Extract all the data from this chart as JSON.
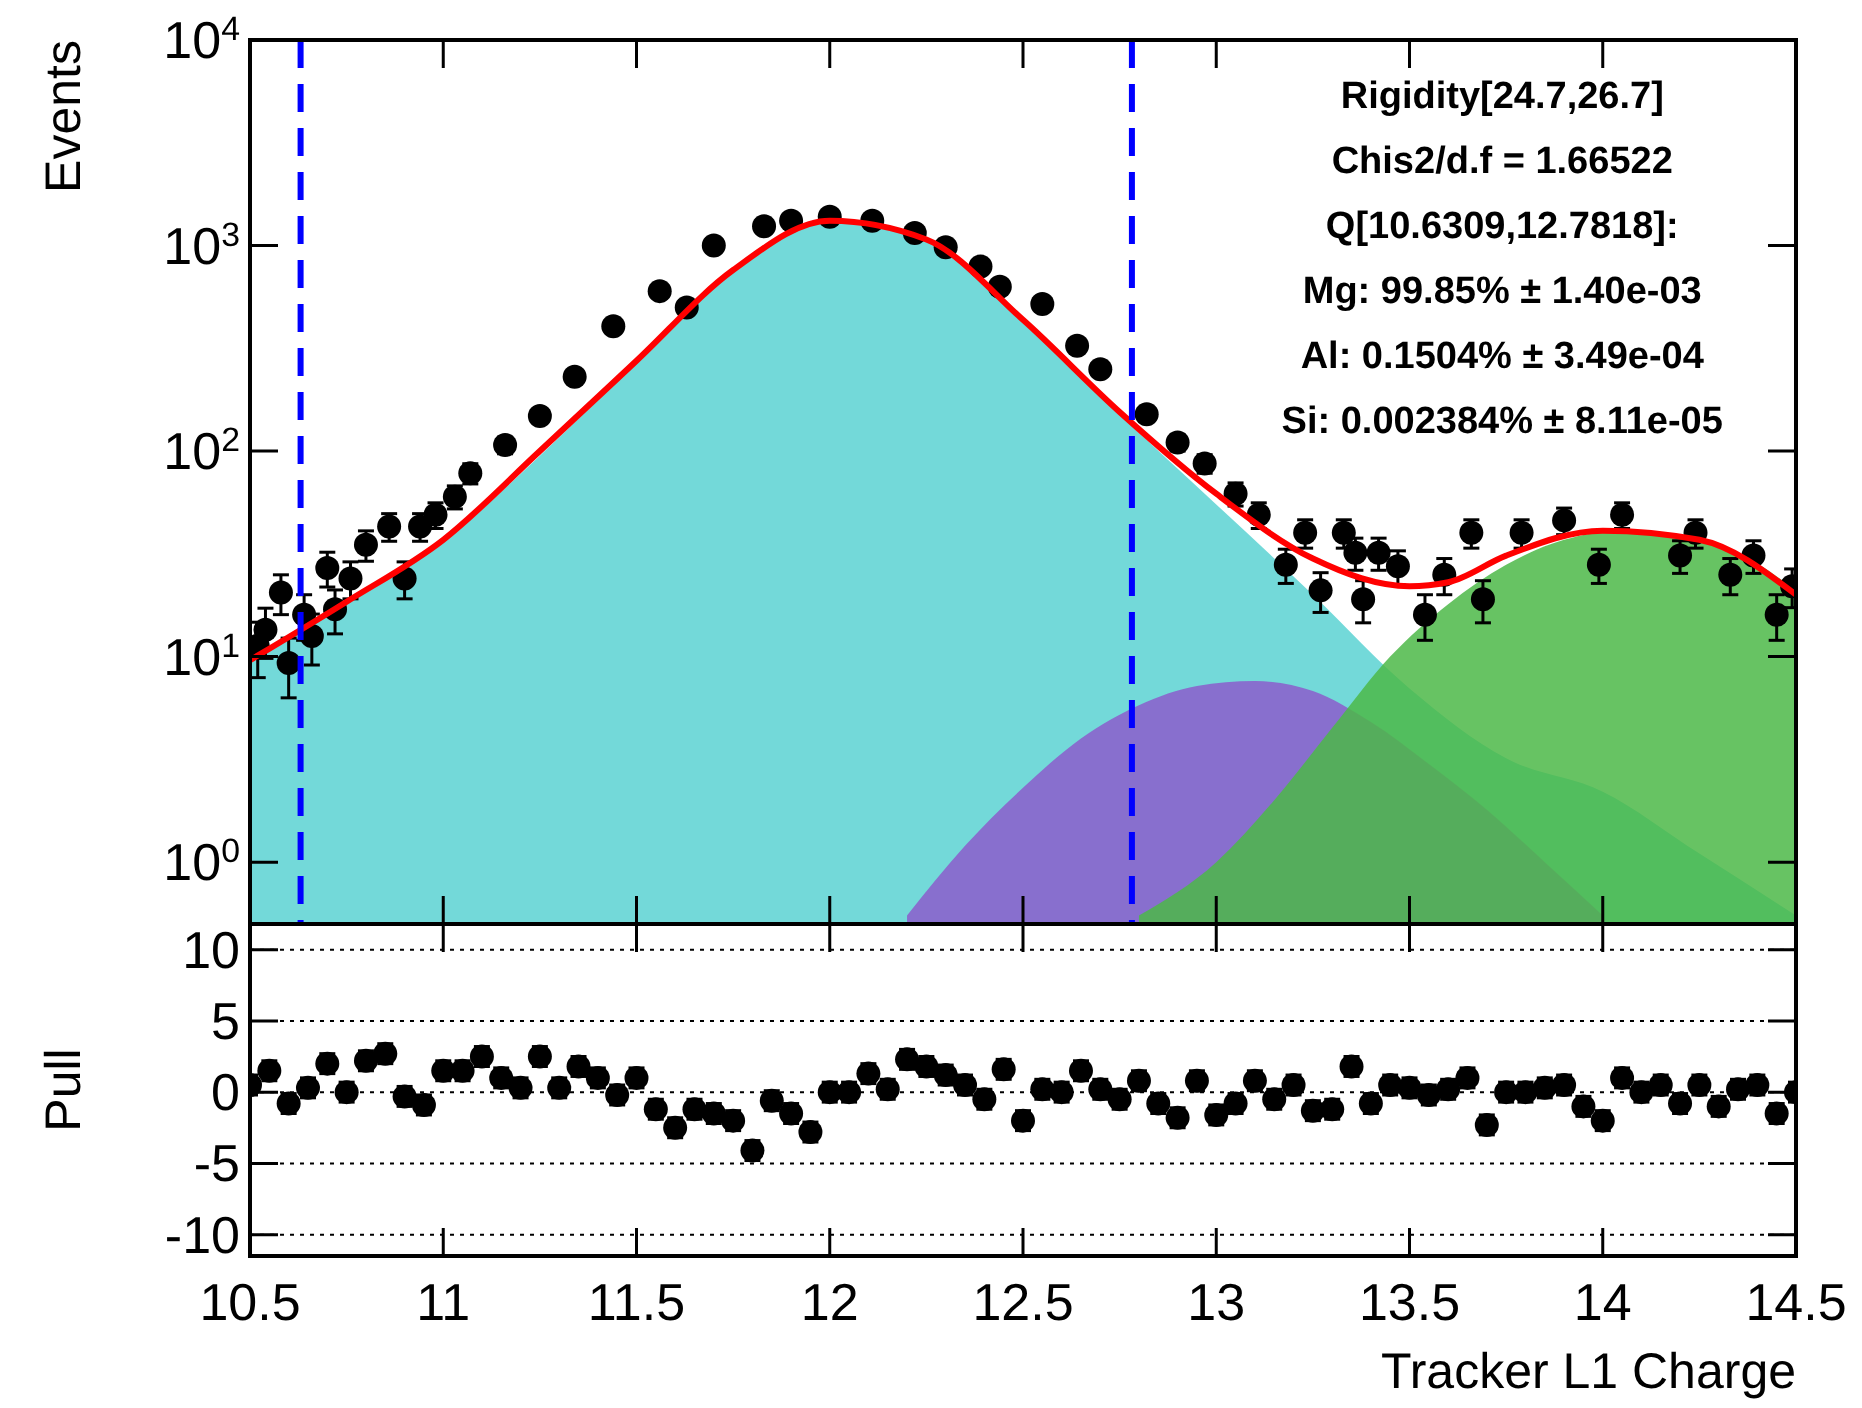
{
  "chart_data": [
    {
      "type": "area",
      "ylabel": "Events",
      "log": true,
      "xlim": [
        10.5,
        14.5
      ],
      "ylim": [
        0.5,
        10000
      ],
      "xticks": [
        10.5,
        11,
        11.5,
        12,
        12.5,
        13,
        13.5,
        14,
        14.5
      ],
      "yticks": [
        {
          "value": 1,
          "label": "10$^{0}$"
        },
        {
          "value": 10,
          "label": "10$^{1}$"
        },
        {
          "value": 100,
          "label": "10$^{2}$"
        },
        {
          "value": 1000,
          "label": "10$^{3}$"
        },
        {
          "value": 10000,
          "label": "10$^{4}$"
        }
      ],
      "tick_labels": "y",
      "series": [
        {
          "color": "#5ad2d2",
          "x": [
            10.5,
            10.75,
            11,
            11.25,
            11.5,
            11.75,
            12,
            12.25,
            12.5,
            12.75,
            13,
            13.25,
            13.5,
            13.75,
            14,
            14.25,
            14.5
          ],
          "values": [
            9.6,
            18,
            36,
            95,
            270,
            750,
            1300,
            1050,
            420,
            150,
            55,
            20,
            7,
            3.2,
            2.2,
            1.1,
            0.55
          ]
        },
        {
          "color": "#8c5ccb",
          "x": [
            12.2,
            12.35,
            12.5,
            12.65,
            12.8,
            12.95,
            13.1,
            13.25,
            13.4,
            13.55,
            13.7,
            13.85,
            14.0
          ],
          "values": [
            0.55,
            1.2,
            2.3,
            4.0,
            5.8,
            7.2,
            7.6,
            6.8,
            4.8,
            3.0,
            1.8,
            1.0,
            0.55
          ]
        },
        {
          "color": "#4cb848",
          "x": [
            12.8,
            13.0,
            13.15,
            13.3,
            13.45,
            13.6,
            13.75,
            13.9,
            14.05,
            14.2,
            14.35,
            14.5
          ],
          "values": [
            0.55,
            1.0,
            2.0,
            4.5,
            10,
            18,
            28,
            37,
            41,
            39,
            32,
            21
          ]
        },
        {
          "type": "scatter",
          "color": "#000000",
          "marker": "circle",
          "x": [
            10.52,
            10.54,
            10.58,
            10.6,
            10.64,
            10.66,
            10.7,
            10.72,
            10.76,
            10.8,
            10.86,
            10.9,
            10.94,
            10.98,
            11.03,
            11.07,
            11.16,
            11.25,
            11.34,
            11.44,
            11.56,
            11.63,
            11.7,
            11.83,
            11.9,
            12.0,
            12.11,
            12.22,
            12.3,
            12.39,
            12.44,
            12.55,
            12.64,
            12.7,
            12.82,
            12.9,
            12.97,
            13.05,
            13.11,
            13.18,
            13.23,
            13.27,
            13.33,
            13.36,
            13.38,
            13.42,
            13.47,
            13.54,
            13.59,
            13.66,
            13.69,
            13.79,
            13.9,
            13.99,
            14.05,
            14.2,
            14.24,
            14.33,
            14.39,
            14.45,
            14.49
          ],
          "values": [
            11.3,
            13.5,
            20.5,
            9.3,
            16,
            12.6,
            27,
            17,
            24,
            35,
            43,
            24,
            43,
            49,
            60,
            78,
            107,
            148,
            230,
            405,
            600,
            500,
            1000,
            1240,
            1320,
            1380,
            1320,
            1150,
            980,
            790,
            630,
            520,
            325,
            250,
            151,
            110,
            87,
            62,
            49,
            28,
            40,
            21,
            40,
            32,
            19,
            32,
            27.5,
            16,
            25,
            40,
            19,
            40,
            46,
            28,
            49,
            31,
            40,
            25,
            31,
            16,
            22
          ],
          "errors": [
            3.4,
            3.7,
            4.5,
            3,
            4,
            3.5,
            5.2,
            4.1,
            4.9,
            5.9,
            6.6,
            4.9,
            6.6,
            7,
            7.7,
            8.8,
            10,
            12,
            15,
            20,
            24,
            22,
            32,
            35,
            36,
            37,
            36,
            34,
            31,
            28,
            25,
            23,
            18,
            16,
            12,
            10,
            9,
            8,
            7,
            5.3,
            6.3,
            4.6,
            6.3,
            5.7,
            4.4,
            5.7,
            5.2,
            4,
            5,
            6.3,
            4.4,
            6.3,
            6.8,
            5.3,
            7,
            5.6,
            6.3,
            5,
            5.6,
            4,
            4.7
          ]
        },
        {
          "type": "line",
          "color": "#ff0000",
          "x": [
            10.5,
            10.75,
            11,
            11.25,
            11.5,
            11.75,
            12,
            12.25,
            12.5,
            12.75,
            13,
            13.25,
            13.5,
            13.6,
            13.75,
            14,
            14.25,
            14.5
          ],
          "values": [
            9.6,
            18.5,
            37,
            100,
            275,
            760,
            1320,
            1070,
            435,
            155,
            62,
            30,
            22,
            23,
            31,
            41,
            37,
            20
          ]
        }
      ],
      "ref_lines": [
        {
          "axis": "x",
          "value": 10.6309,
          "color": "#0000ff",
          "line_style": "dashed"
        },
        {
          "axis": "x",
          "value": 12.7818,
          "color": "#0000ff",
          "line_style": "dashed"
        }
      ],
      "annotations": [
        "Rigidity[24.7,26.7]",
        "Chis2/d.f = 1.66522",
        "Q[10.6309,12.7818]:",
        "Mg: 99.85% ± 1.40e-03",
        "Al: 0.1504% ± 3.49e-04",
        "Si: 0.002384% ± 8.11e-05"
      ]
    },
    {
      "type": "scatter",
      "xlabel": "Tracker L1 Charge",
      "ylabel": "Pull",
      "xlim": [
        10.5,
        14.5
      ],
      "ylim": [
        -11.5,
        11.8
      ],
      "xticks": [
        10.5,
        11,
        11.5,
        12,
        12.5,
        13,
        13.5,
        14,
        14.5
      ],
      "yticks": [
        -10,
        -5,
        0,
        5,
        10
      ],
      "grid": "y",
      "marker": "circle",
      "x": [
        10.5,
        10.55,
        10.6,
        10.65,
        10.7,
        10.75,
        10.8,
        10.85,
        10.9,
        10.95,
        11,
        11.05,
        11.1,
        11.15,
        11.2,
        11.25,
        11.3,
        11.35,
        11.4,
        11.45,
        11.5,
        11.55,
        11.6,
        11.65,
        11.7,
        11.75,
        11.8,
        11.85,
        11.9,
        11.95,
        12,
        12.05,
        12.1,
        12.15,
        12.2,
        12.25,
        12.3,
        12.35,
        12.4,
        12.45,
        12.5,
        12.55,
        12.6,
        12.65,
        12.7,
        12.75,
        12.8,
        12.85,
        12.9,
        12.95,
        13,
        13.05,
        13.1,
        13.15,
        13.2,
        13.25,
        13.3,
        13.35,
        13.4,
        13.45,
        13.5,
        13.55,
        13.6,
        13.65,
        13.7,
        13.75,
        13.8,
        13.85,
        13.9,
        13.95,
        14,
        14.05,
        14.1,
        14.15,
        14.2,
        14.25,
        14.3,
        14.35,
        14.4,
        14.45,
        14.5
      ],
      "series": [
        {
          "color": "#000000",
          "values": [
            0.5,
            1.5,
            -0.8,
            0.3,
            2.0,
            0.0,
            2.2,
            2.7,
            -0.3,
            -0.9,
            1.5,
            1.5,
            2.5,
            1.0,
            0.3,
            2.5,
            0.3,
            1.8,
            1.0,
            -0.2,
            1.0,
            -1.2,
            -2.5,
            -1.2,
            -1.5,
            -2.0,
            -4.1,
            -0.6,
            -1.5,
            -2.8,
            0.0,
            0.0,
            1.3,
            0.2,
            2.3,
            1.8,
            1.2,
            0.5,
            -0.5,
            1.6,
            -2.0,
            0.2,
            0.0,
            1.5,
            0.2,
            -0.5,
            0.8,
            -0.8,
            -1.8,
            0.8,
            -1.6,
            -0.8,
            0.8,
            -0.5,
            0.5,
            -1.3,
            -1.2,
            1.8,
            -0.8,
            0.5,
            0.3,
            -0.2,
            0.2,
            1.0,
            -2.3,
            0.0,
            0.0,
            0.3,
            0.5,
            -1.0,
            -2.0,
            1.0,
            0.0,
            0.5,
            -0.8,
            0.5,
            -1.0,
            0.2,
            0.5,
            -1.5,
            0.0
          ],
          "errors": [
            0.7,
            0.7,
            0.7,
            0.7,
            0.7,
            0.7,
            0.7,
            0.7,
            0.7,
            0.7,
            0.7,
            0.7,
            0.7,
            0.7,
            0.7,
            0.7,
            0.7,
            0.7,
            0.7,
            0.7,
            0.7,
            0.7,
            0.7,
            0.7,
            0.7,
            0.7,
            0.7,
            0.7,
            0.7,
            0.7,
            0.7,
            0.7,
            0.7,
            0.7,
            0.7,
            0.7,
            0.7,
            0.7,
            0.7,
            0.7,
            0.7,
            0.7,
            0.7,
            0.7,
            0.7,
            0.7,
            0.7,
            0.7,
            0.7,
            0.7,
            0.7,
            0.7,
            0.7,
            0.7,
            0.7,
            0.7,
            0.7,
            0.7,
            0.7,
            0.7,
            0.7,
            0.7,
            0.7,
            0.7,
            0.7,
            0.7,
            0.7,
            0.7,
            0.7,
            0.7,
            0.7,
            0.7,
            0.7,
            0.7,
            0.7,
            0.7,
            0.7,
            0.7,
            0.7,
            0.7,
            0.7
          ]
        }
      ]
    }
  ]
}
